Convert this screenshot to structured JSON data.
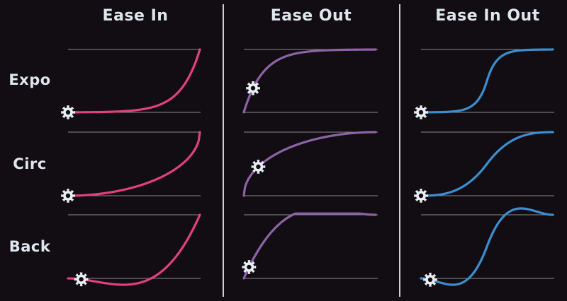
{
  "columns": [
    {
      "key": "in",
      "label": "Ease In",
      "color": "#e0407e"
    },
    {
      "key": "out",
      "label": "Ease Out",
      "color": "#8f62a8"
    },
    {
      "key": "inout",
      "label": "Ease In Out",
      "color": "#3a8fd0"
    }
  ],
  "rows": [
    {
      "key": "expo",
      "label": "Expo"
    },
    {
      "key": "circ",
      "label": "Circ"
    },
    {
      "key": "back",
      "label": "Back"
    }
  ],
  "gear_icon": "gear-icon",
  "gridline_color": "#8c8c8c",
  "background_color": "#120d12"
}
